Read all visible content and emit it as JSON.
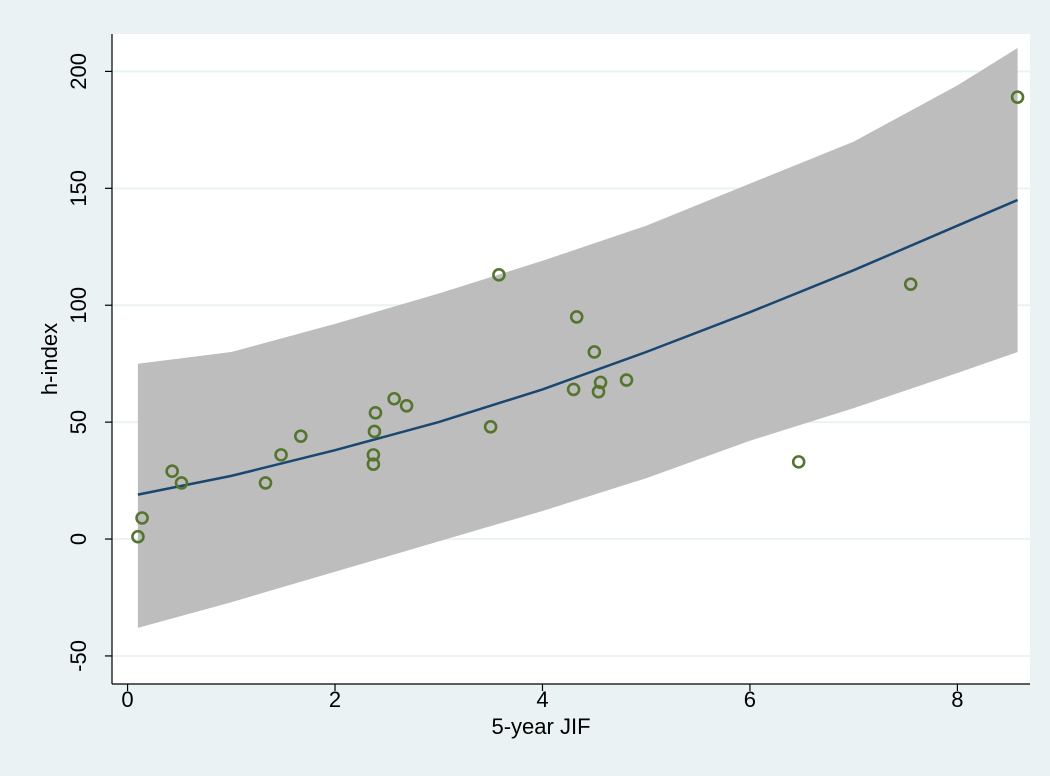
{
  "chart_data": {
    "type": "scatter",
    "xlabel": "5-year JIF",
    "ylabel": "h-index",
    "xlim": [
      -0.15,
      8.7
    ],
    "ylim": [
      -62,
      216
    ],
    "xticks": [
      0,
      2,
      4,
      6,
      8
    ],
    "yticks": [
      -50,
      0,
      50,
      100,
      150,
      200
    ],
    "xtick_labels": [
      "0",
      "2",
      "4",
      "6",
      "8"
    ],
    "ytick_labels": [
      "-50",
      "0",
      "50",
      "100",
      "150",
      "200"
    ],
    "grid": "horizontal",
    "legend": "none",
    "points": [
      {
        "x": 0.1,
        "y": 1
      },
      {
        "x": 0.14,
        "y": 9
      },
      {
        "x": 0.43,
        "y": 29
      },
      {
        "x": 0.52,
        "y": 24
      },
      {
        "x": 1.33,
        "y": 24
      },
      {
        "x": 1.48,
        "y": 36
      },
      {
        "x": 1.67,
        "y": 44
      },
      {
        "x": 2.37,
        "y": 32
      },
      {
        "x": 2.37,
        "y": 36
      },
      {
        "x": 2.38,
        "y": 46
      },
      {
        "x": 2.39,
        "y": 54
      },
      {
        "x": 2.57,
        "y": 60
      },
      {
        "x": 2.69,
        "y": 57
      },
      {
        "x": 3.5,
        "y": 48
      },
      {
        "x": 3.58,
        "y": 113
      },
      {
        "x": 4.3,
        "y": 64
      },
      {
        "x": 4.33,
        "y": 95
      },
      {
        "x": 4.5,
        "y": 80
      },
      {
        "x": 4.54,
        "y": 63
      },
      {
        "x": 4.56,
        "y": 67
      },
      {
        "x": 4.81,
        "y": 68
      },
      {
        "x": 6.47,
        "y": 33
      },
      {
        "x": 7.55,
        "y": 109
      },
      {
        "x": 8.58,
        "y": 189
      }
    ],
    "fit_line": {
      "x": [
        0.1,
        1,
        2,
        3,
        4,
        5,
        6,
        7,
        8,
        8.58
      ],
      "y": [
        19,
        27,
        38,
        50,
        64,
        80,
        97,
        115,
        134,
        145
      ]
    },
    "ci_band": {
      "x": [
        0.1,
        1,
        2,
        3,
        4,
        5,
        6,
        7,
        8,
        8.58
      ],
      "lower": [
        -38,
        -27,
        -14,
        -1,
        12,
        26,
        42,
        56,
        71,
        80
      ],
      "upper": [
        75,
        80,
        92,
        105,
        119,
        134,
        152,
        170,
        194,
        210
      ]
    },
    "colors": {
      "background": "#eaf2f3",
      "plot_area": "#ffffff",
      "ci_band": "#bdbdbd",
      "fit_line": "#1a476f",
      "marker": "#55752f",
      "grid": "#eaf2f3"
    }
  }
}
